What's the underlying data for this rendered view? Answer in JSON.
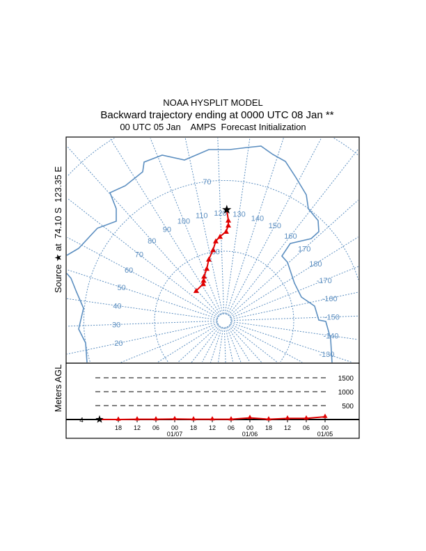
{
  "title": {
    "line1": "NOAA HYSPLIT MODEL",
    "line2": "Backward trajectory ending at 0000 UTC 08 Jan **",
    "line3": "00 UTC 05 Jan    AMPS  Forecast Initialization"
  },
  "source_label": "Source ★ at  74.10 S  123.35 E",
  "colors": {
    "trajectory": "#e00000",
    "map": "#5b8ec0",
    "frame": "#000000"
  },
  "chart_data": [
    {
      "type": "map-trajectory",
      "projection": "polar stereographic (south pole)",
      "source": {
        "lat": -74.1,
        "lon": 123.35
      },
      "longitude_labels": [
        "20",
        "30",
        "40",
        "50",
        "60",
        "70",
        "80",
        "90",
        "100",
        "110",
        "120",
        "130",
        "140",
        "150",
        "160",
        "170",
        "180",
        "-170",
        "-160",
        "-150",
        "-140",
        "-130"
      ],
      "longitude_values": [
        20,
        30,
        40,
        50,
        60,
        70,
        80,
        90,
        100,
        110,
        120,
        130,
        140,
        150,
        160,
        170,
        180,
        -170,
        -160,
        -150,
        -140,
        -130
      ],
      "latitude_labels": [
        "70",
        "80"
      ],
      "latitude_values": [
        -70,
        -80
      ],
      "trajectory": {
        "hours_back": [
          0,
          6,
          12,
          18,
          24,
          30,
          36,
          42,
          48,
          54,
          60,
          66,
          72
        ],
        "lat": [
          -74.1,
          -75.6,
          -76.3,
          -77.2,
          -77.9,
          -78.5,
          -79.7,
          -80.9,
          -82.1,
          -83.0,
          -83.5,
          -83.9,
          -84.1
        ],
        "lon": [
          123.35,
          124.4,
          124.5,
          123.3,
          119.2,
          116.0,
          113.1,
          108.0,
          103.6,
          97.6,
          95.0,
          92.5,
          79.0
        ]
      }
    },
    {
      "type": "line",
      "ylabel": "Meters AGL",
      "source_height_label": "4",
      "y_reference_labels": [
        "1500",
        "1000",
        "500"
      ],
      "y_reference_values": [
        1500,
        1000,
        500
      ],
      "x_tick_labels": [
        "18",
        "12",
        "06",
        "00",
        "18",
        "12",
        "06",
        "00",
        "18",
        "12",
        "06",
        "00"
      ],
      "x_date_labels": [
        {
          "after_tick": 3,
          "text": "01/07"
        },
        {
          "after_tick": 7,
          "text": "01/06"
        },
        {
          "after_tick": 11,
          "text": "01/05"
        }
      ],
      "series": [
        {
          "hours_back": [
            0,
            6,
            12,
            18,
            24,
            30,
            36,
            42,
            48,
            54,
            60,
            66,
            72
          ],
          "height_m": [
            4,
            0,
            10,
            10,
            20,
            10,
            10,
            10,
            60,
            10,
            40,
            40,
            100
          ]
        }
      ]
    }
  ]
}
